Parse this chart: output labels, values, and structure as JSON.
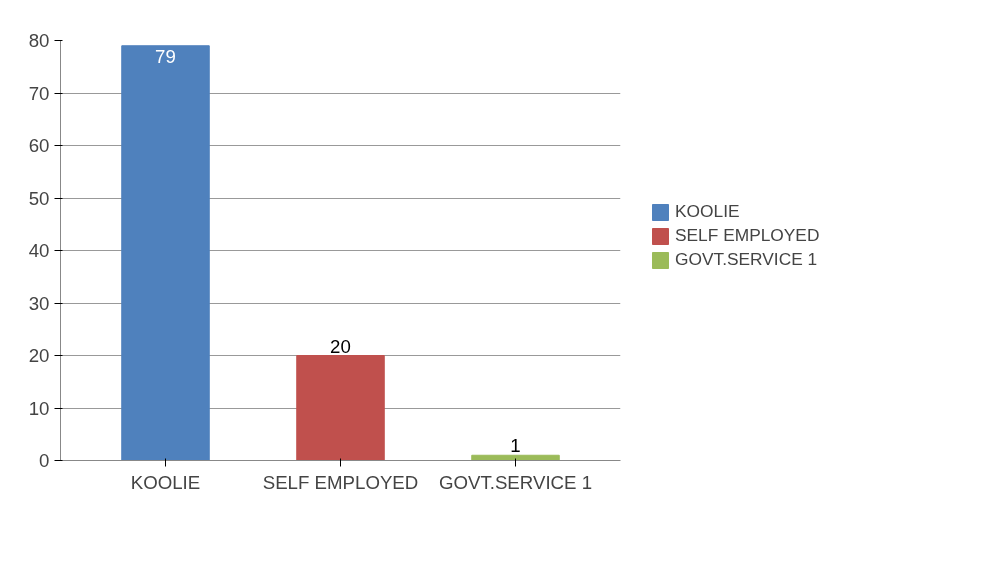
{
  "chart_data": {
    "type": "bar",
    "categories": [
      "KOOLIE",
      "SELF EMPLOYED",
      "GOVT.SERVICE 1"
    ],
    "series": [
      {
        "name": "KOOLIE",
        "color": "#4f81bd",
        "values": [
          79,
          null,
          null
        ]
      },
      {
        "name": "SELF EMPLOYED",
        "color": "#c0504d",
        "values": [
          null,
          20,
          null
        ]
      },
      {
        "name": "GOVT.SERVICE 1",
        "color": "#9bbb59",
        "values": [
          null,
          null,
          1
        ]
      }
    ],
    "ylim": [
      0,
      80
    ],
    "yticks": [
      0,
      10,
      20,
      30,
      40,
      50,
      60,
      70,
      80
    ],
    "grid": "y",
    "legend": "right",
    "data_labels": true
  }
}
